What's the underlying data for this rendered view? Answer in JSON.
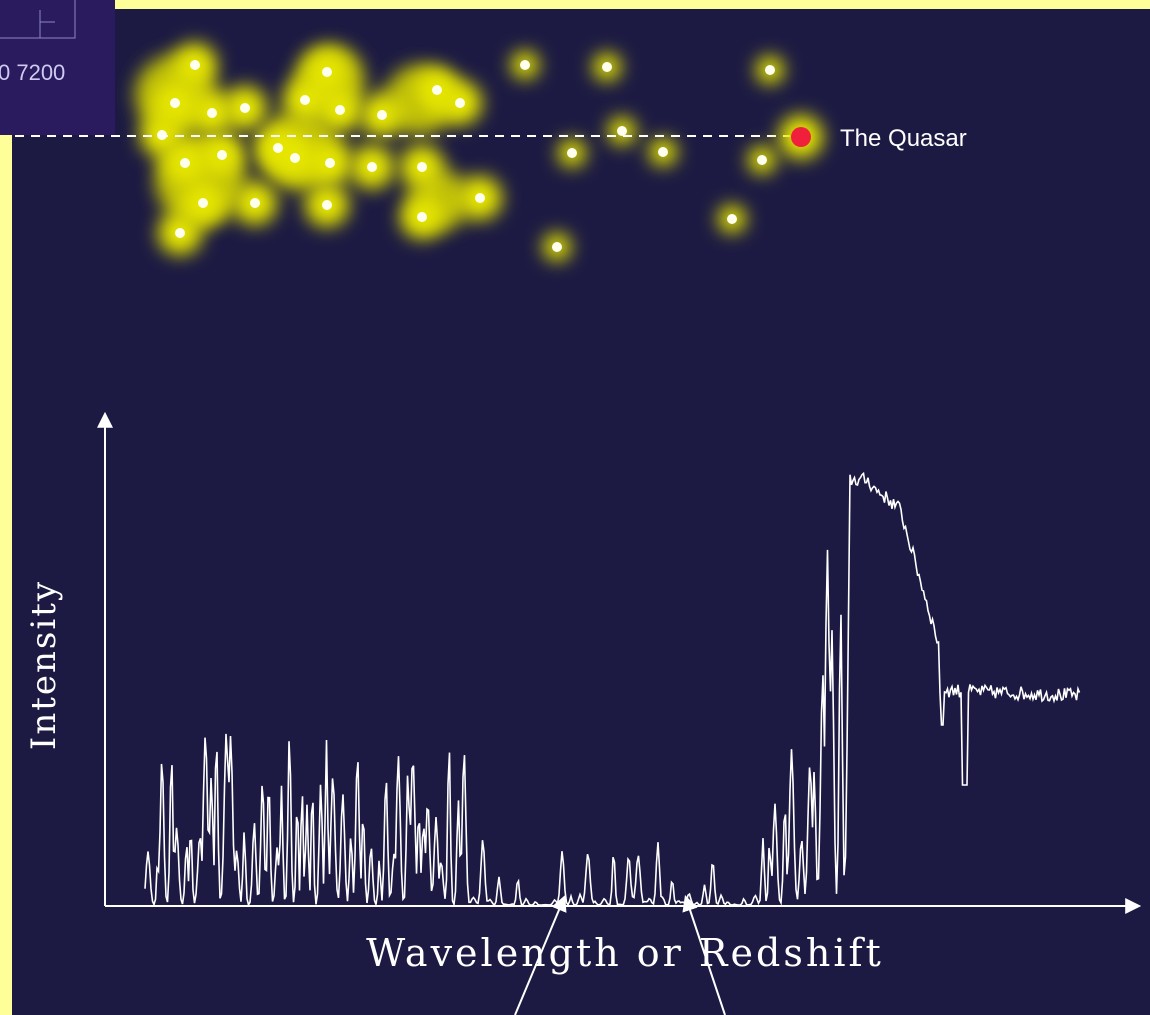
{
  "inset": {
    "label": "0  7200"
  },
  "quasar_label": "The Quasar",
  "y_axis_label": "Intensity",
  "x_axis_label": "Wavelength or Redshift"
}
